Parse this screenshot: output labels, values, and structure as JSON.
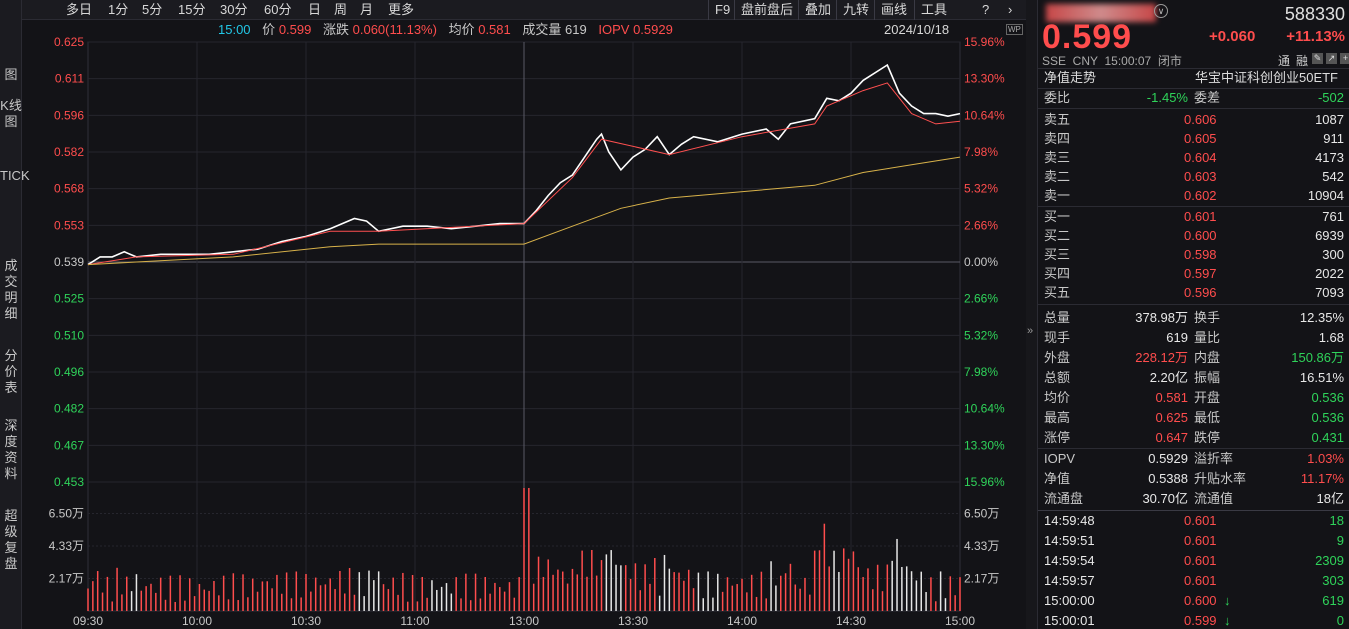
{
  "toolbar": {
    "items": [
      "多日",
      "1分",
      "5分",
      "15分",
      "30分",
      "60分",
      "日",
      "周",
      "月",
      "更多"
    ],
    "right_items": [
      "F9",
      "盘前盘后",
      "叠加",
      "九转",
      "画线",
      "工具"
    ],
    "help_icon": "help-circle-icon",
    "next_icon": "chevron-right-icon"
  },
  "leftnav": [
    "图",
    "K线图",
    "TICK",
    "成交明细",
    "分价表",
    "深度资料",
    "超级复盘"
  ],
  "info_bar": {
    "time": "15:00",
    "price_label": "价",
    "price": "0.599",
    "change_label": "涨跌",
    "change": "0.060(11.13%)",
    "avg_label": "均价",
    "avg": "0.581",
    "volume_label": "成交量",
    "volume": "619",
    "iopv_label": "IOPV",
    "iopv": "0.5929",
    "date": "2024/10/18",
    "badge": "WP"
  },
  "chart_data": {
    "type": "line",
    "prev_close": 0.539,
    "y_price_ticks": [
      "0.625",
      "0.611",
      "0.596",
      "0.582",
      "0.568",
      "0.553",
      "0.539",
      "0.525",
      "0.510",
      "0.496",
      "0.482",
      "0.467",
      "0.453"
    ],
    "y_pct_ticks": [
      "15.96%",
      "13.30%",
      "10.64%",
      "7.98%",
      "5.32%",
      "2.66%",
      "0.00%",
      "2.66%",
      "5.32%",
      "7.98%",
      "10.64%",
      "13.30%",
      "15.96%"
    ],
    "ylim": [
      0.453,
      0.625
    ],
    "x_ticks": [
      "09:30",
      "10:00",
      "10:30",
      "11:00",
      "13:00",
      "13:30",
      "14:00",
      "14:30",
      "15:00"
    ],
    "vol_ticks": [
      "6.50万",
      "4.33万",
      "2.17万"
    ],
    "vol_ylim": [
      0,
      8.6
    ],
    "series": [
      {
        "color": "#ffffff",
        "values": [
          [
            0,
            0.538
          ],
          [
            5,
            0.541
          ],
          [
            10,
            0.541
          ],
          [
            15,
            0.543
          ],
          [
            20,
            0.541
          ],
          [
            30,
            0.542
          ],
          [
            40,
            0.542
          ],
          [
            50,
            0.542
          ],
          [
            60,
            0.543
          ],
          [
            70,
            0.544
          ],
          [
            80,
            0.547
          ],
          [
            90,
            0.549
          ],
          [
            100,
            0.552
          ],
          [
            110,
            0.556
          ],
          [
            115,
            0.555
          ],
          [
            120,
            0.551
          ],
          [
            130,
            0.553
          ],
          [
            140,
            0.553
          ],
          [
            150,
            0.552
          ],
          [
            160,
            0.553
          ],
          [
            170,
            0.554
          ],
          [
            180,
            0.554
          ],
          [
            185,
            0.559
          ],
          [
            190,
            0.565
          ],
          [
            195,
            0.57
          ],
          [
            200,
            0.573
          ],
          [
            205,
            0.58
          ],
          [
            210,
            0.587
          ],
          [
            212,
            0.589
          ],
          [
            215,
            0.582
          ],
          [
            220,
            0.575
          ],
          [
            225,
            0.58
          ],
          [
            230,
            0.583
          ],
          [
            235,
            0.588
          ],
          [
            240,
            0.581
          ],
          [
            245,
            0.585
          ],
          [
            250,
            0.588
          ],
          [
            260,
            0.586
          ],
          [
            270,
            0.589
          ],
          [
            280,
            0.591
          ],
          [
            285,
            0.587
          ],
          [
            290,
            0.593
          ],
          [
            300,
            0.595
          ],
          [
            305,
            0.603
          ],
          [
            310,
            0.602
          ],
          [
            315,
            0.605
          ],
          [
            320,
            0.61
          ],
          [
            330,
            0.616
          ],
          [
            335,
            0.605
          ],
          [
            340,
            0.6
          ],
          [
            345,
            0.597
          ],
          [
            350,
            0.597
          ],
          [
            355,
            0.596
          ],
          [
            360,
            0.597
          ]
        ]
      },
      {
        "color": "#ff5050",
        "values": [
          [
            0,
            0.538
          ],
          [
            20,
            0.541
          ],
          [
            60,
            0.542
          ],
          [
            100,
            0.551
          ],
          [
            120,
            0.551
          ],
          [
            180,
            0.554
          ],
          [
            200,
            0.572
          ],
          [
            212,
            0.587
          ],
          [
            240,
            0.581
          ],
          [
            270,
            0.588
          ],
          [
            300,
            0.593
          ],
          [
            305,
            0.6
          ],
          [
            320,
            0.606
          ],
          [
            330,
            0.609
          ],
          [
            340,
            0.597
          ],
          [
            350,
            0.593
          ],
          [
            360,
            0.594
          ]
        ]
      },
      {
        "name": "均价",
        "color": "#d8b24a",
        "values": [
          [
            0,
            0.538
          ],
          [
            60,
            0.541
          ],
          [
            100,
            0.545
          ],
          [
            120,
            0.546
          ],
          [
            180,
            0.546
          ],
          [
            200,
            0.553
          ],
          [
            220,
            0.56
          ],
          [
            240,
            0.564
          ],
          [
            300,
            0.569
          ],
          [
            320,
            0.574
          ],
          [
            340,
            0.577
          ],
          [
            360,
            0.58
          ]
        ]
      }
    ]
  },
  "quote": {
    "name": "华宝中证科创创业50ETF",
    "code": "588330",
    "price": "0.599",
    "change": "+0.060",
    "change_pct": "+11.13%",
    "market": "SSE  CNY  15:00:07  闭市",
    "tags": [
      "通",
      "融"
    ],
    "nav_trend": "净值走势",
    "weibi_label": "委比",
    "weibi": "-1.45%",
    "weicha_label": "委差",
    "weicha": "-502",
    "asks": [
      {
        "label": "卖五",
        "price": "0.606",
        "vol": "1087"
      },
      {
        "label": "卖四",
        "price": "0.605",
        "vol": "911"
      },
      {
        "label": "卖三",
        "price": "0.604",
        "vol": "4173"
      },
      {
        "label": "卖二",
        "price": "0.603",
        "vol": "542"
      },
      {
        "label": "卖一",
        "price": "0.602",
        "vol": "10904"
      }
    ],
    "bids": [
      {
        "label": "买一",
        "price": "0.601",
        "vol": "761"
      },
      {
        "label": "买二",
        "price": "0.600",
        "vol": "6939"
      },
      {
        "label": "买三",
        "price": "0.598",
        "vol": "300"
      },
      {
        "label": "买四",
        "price": "0.597",
        "vol": "2022"
      },
      {
        "label": "买五",
        "price": "0.596",
        "vol": "7093"
      }
    ],
    "stats": [
      [
        "总量",
        "378.98万",
        "换手",
        "12.35%"
      ],
      [
        "现手",
        "619",
        "量比",
        "1.68"
      ],
      [
        "外盘",
        "228.12万",
        "内盘",
        "150.86万"
      ],
      [
        "总额",
        "2.20亿",
        "振幅",
        "16.51%"
      ],
      [
        "均价",
        "0.581",
        "开盘",
        "0.536"
      ],
      [
        "最高",
        "0.625",
        "最低",
        "0.536"
      ],
      [
        "涨停",
        "0.647",
        "跌停",
        "0.431"
      ]
    ],
    "stats2": [
      [
        "IOPV",
        "0.5929",
        "溢折率",
        "1.03%"
      ],
      [
        "净值",
        "0.5388",
        "升贴水率",
        "11.17%"
      ],
      [
        "流通盘",
        "30.70亿",
        "流通值",
        "18亿"
      ]
    ],
    "ticks": [
      {
        "time": "14:59:48",
        "price": "0.601",
        "arrow": "",
        "vol": "18"
      },
      {
        "time": "14:59:51",
        "price": "0.601",
        "arrow": "",
        "vol": "9"
      },
      {
        "time": "14:59:54",
        "price": "0.601",
        "arrow": "",
        "vol": "2309"
      },
      {
        "time": "14:59:57",
        "price": "0.601",
        "arrow": "",
        "vol": "303"
      },
      {
        "time": "15:00:00",
        "price": "0.600",
        "arrow": "↓",
        "vol": "619"
      },
      {
        "time": "15:00:01",
        "price": "0.599",
        "arrow": "↓",
        "vol": "0"
      }
    ]
  }
}
